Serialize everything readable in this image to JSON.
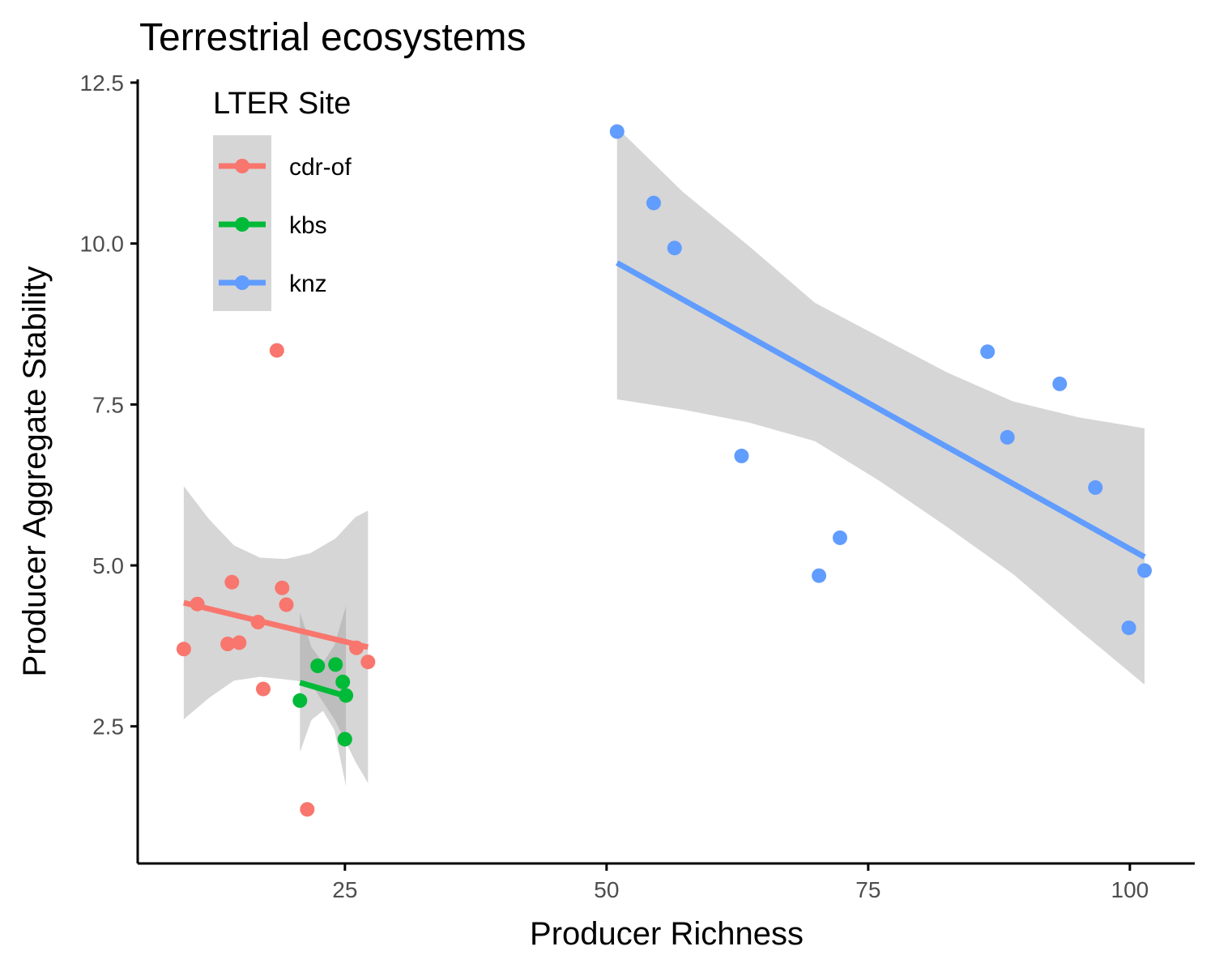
{
  "chart_data": {
    "type": "scatter",
    "title": "Terrestrial ecosystems",
    "xlabel": "Producer Richness",
    "ylabel": "Producer Aggregate Stability",
    "xlim": [
      5.2,
      106.2
    ],
    "ylim": [
      0.37,
      12.55
    ],
    "xticks": [
      25,
      50,
      75,
      100
    ],
    "yticks": [
      2.5,
      5.0,
      7.5,
      10.0,
      12.5
    ],
    "xtick_labels": [
      "25",
      "50",
      "75",
      "100"
    ],
    "ytick_labels": [
      "2.5",
      "5.0",
      "7.5",
      "10.0",
      "12.5"
    ],
    "grid": false,
    "legend": {
      "title": "LTER Site",
      "position": "top-left"
    },
    "series": [
      {
        "name": "cdr-of",
        "color": "#F8766D",
        "points": [
          [
            9.6,
            3.7
          ],
          [
            10.9,
            4.4
          ],
          [
            13.8,
            3.78
          ],
          [
            14.2,
            4.74
          ],
          [
            14.9,
            3.8
          ],
          [
            16.7,
            4.12
          ],
          [
            17.2,
            3.08
          ],
          [
            18.5,
            8.34
          ],
          [
            19.0,
            4.65
          ],
          [
            19.4,
            4.39
          ],
          [
            21.4,
            1.21
          ],
          [
            26.1,
            3.72
          ],
          [
            27.2,
            3.5
          ]
        ],
        "fit": {
          "x": [
            9.6,
            27.2
          ],
          "y": [
            4.42,
            3.73
          ]
        },
        "ci": {
          "x": [
            9.6,
            12.0,
            14.4,
            16.9,
            19.3,
            21.7,
            24.1,
            26.0,
            27.2
          ],
          "upper": [
            6.23,
            5.72,
            5.31,
            5.12,
            5.1,
            5.19,
            5.42,
            5.75,
            5.85
          ],
          "lower": [
            2.61,
            2.94,
            3.21,
            3.27,
            3.23,
            3.18,
            2.58,
            1.95,
            1.62
          ]
        }
      },
      {
        "name": "kbs",
        "color": "#00BA38",
        "points": [
          [
            20.7,
            2.9
          ],
          [
            22.4,
            3.44
          ],
          [
            24.1,
            3.46
          ],
          [
            24.8,
            3.19
          ],
          [
            25.0,
            2.3
          ],
          [
            25.1,
            2.98
          ]
        ],
        "fit": {
          "x": [
            20.7,
            25.1
          ],
          "y": [
            3.18,
            2.97
          ]
        },
        "ci": {
          "x": [
            20.7,
            21.8,
            22.9,
            24.0,
            25.1
          ],
          "upper": [
            4.27,
            3.73,
            3.49,
            3.76,
            4.37
          ],
          "lower": [
            2.1,
            2.6,
            2.74,
            2.44,
            1.57
          ]
        }
      },
      {
        "name": "knz",
        "color": "#619CFF",
        "points": [
          [
            51.0,
            11.74
          ],
          [
            54.5,
            10.63
          ],
          [
            56.5,
            9.93
          ],
          [
            62.9,
            6.7
          ],
          [
            70.3,
            4.84
          ],
          [
            72.3,
            5.43
          ],
          [
            86.4,
            8.32
          ],
          [
            88.3,
            6.99
          ],
          [
            93.3,
            7.82
          ],
          [
            96.7,
            6.21
          ],
          [
            99.9,
            4.03
          ],
          [
            101.4,
            4.92
          ]
        ],
        "fit": {
          "x": [
            51.0,
            101.4
          ],
          "y": [
            9.7,
            5.13
          ]
        },
        "ci": {
          "x": [
            51.0,
            57.3,
            63.6,
            69.9,
            76.2,
            82.5,
            88.8,
            95.1,
            101.4
          ],
          "upper": [
            11.8,
            10.8,
            9.96,
            9.08,
            8.54,
            8.0,
            7.55,
            7.3,
            7.13
          ],
          "lower": [
            7.58,
            7.42,
            7.22,
            6.93,
            6.3,
            5.6,
            4.87,
            4.0,
            3.15
          ]
        }
      }
    ]
  }
}
